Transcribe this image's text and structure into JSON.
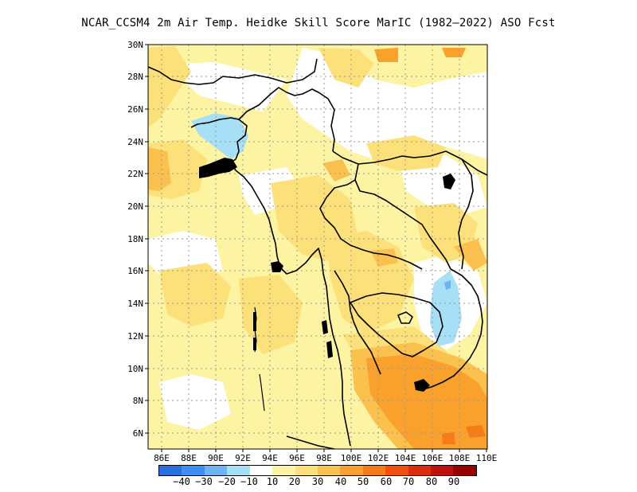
{
  "title": "NCAR_CCSM4  2m Air Temp. Heidke Skill Score MarIC (1982–2022) ASO Fcst",
  "map": {
    "lon_range": [
      85,
      110
    ],
    "lat_range": [
      5,
      30
    ],
    "x_ticks": [
      "86E",
      "88E",
      "90E",
      "92E",
      "94E",
      "96E",
      "98E",
      "100E",
      "102E",
      "104E",
      "106E",
      "108E",
      "110E"
    ],
    "y_ticks": [
      "6N",
      "8N",
      "10N",
      "12N",
      "14N",
      "16N",
      "18N",
      "20N",
      "22N",
      "24N",
      "26N",
      "28N",
      "30N"
    ]
  },
  "colorbar": {
    "colors": [
      "#2a6fe0",
      "#3d8ff5",
      "#6fb3f7",
      "#a7dff7",
      "#ffffff",
      "#fdf4a3",
      "#fce07a",
      "#fbc14e",
      "#f9a12c",
      "#f77b16",
      "#f24f0c",
      "#de2a0d",
      "#bf100d",
      "#990000"
    ],
    "labels": [
      "−40",
      "−30",
      "−20",
      "−10",
      "10",
      "20",
      "30",
      "40",
      "50",
      "60",
      "70",
      "80",
      "90"
    ]
  },
  "colors": {
    "frame": "#000000",
    "grid": "#9a9a9a",
    "coast": "#000000"
  }
}
